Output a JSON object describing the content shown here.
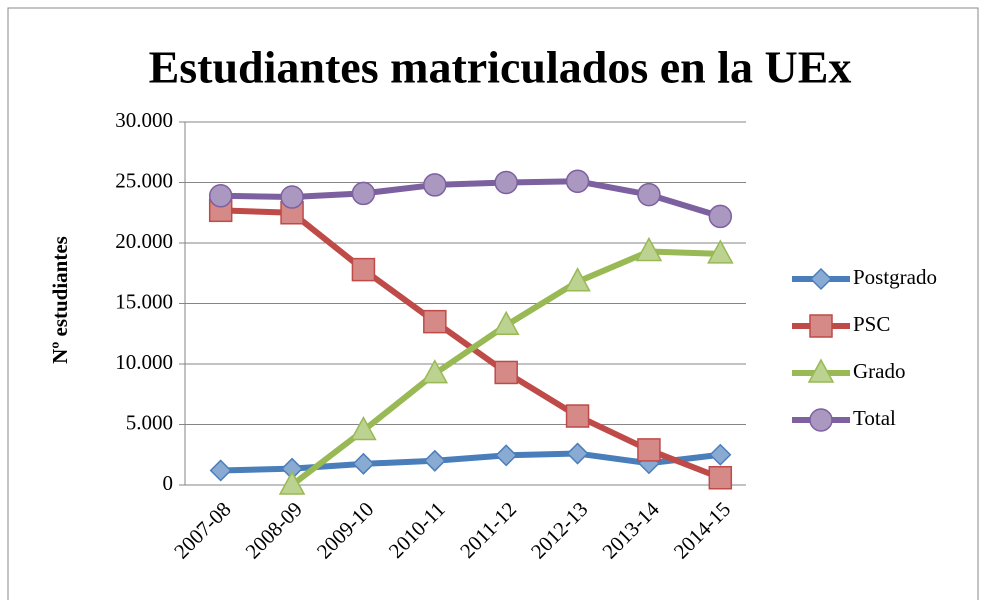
{
  "chart_data": {
    "type": "line",
    "title": "Estudiantes matriculados en la UEx",
    "y_label": "Nº estudiantes",
    "categories": [
      "2007-08",
      "2008-09",
      "2009-10",
      "2010-11",
      "2011-12",
      "2012-13",
      "2013-14",
      "2014-15"
    ],
    "series": [
      {
        "name": "Postgrado",
        "color": "#4a7ebb",
        "values": [
          1200,
          1350,
          1750,
          2000,
          2450,
          2600,
          1800,
          2500
        ]
      },
      {
        "name": "PSC",
        "color": "#be4b48",
        "values": [
          22700,
          22500,
          17800,
          13500,
          9300,
          5700,
          2900,
          600
        ]
      },
      {
        "name": "Grado",
        "color": "#98b954",
        "values": [
          null,
          0,
          4500,
          9200,
          13200,
          16800,
          19300,
          19100
        ]
      },
      {
        "name": "Total",
        "color": "#7d60a0",
        "values": [
          23900,
          23800,
          24100,
          24800,
          25000,
          25100,
          24000,
          22200
        ]
      }
    ],
    "ylim": [
      0,
      30000
    ],
    "yticks": [
      0,
      {
        "value": 5000,
        "label": "5.000"
      },
      {
        "value": 10000,
        "label": "10.000"
      },
      {
        "value": 15000,
        "label": "15.000"
      },
      {
        "value": 20000,
        "label": "20.000"
      },
      {
        "value": 25000,
        "label": "25.000"
      },
      {
        "value": 30000,
        "label": "30.000"
      }
    ],
    "grid": true,
    "legend": "right"
  }
}
